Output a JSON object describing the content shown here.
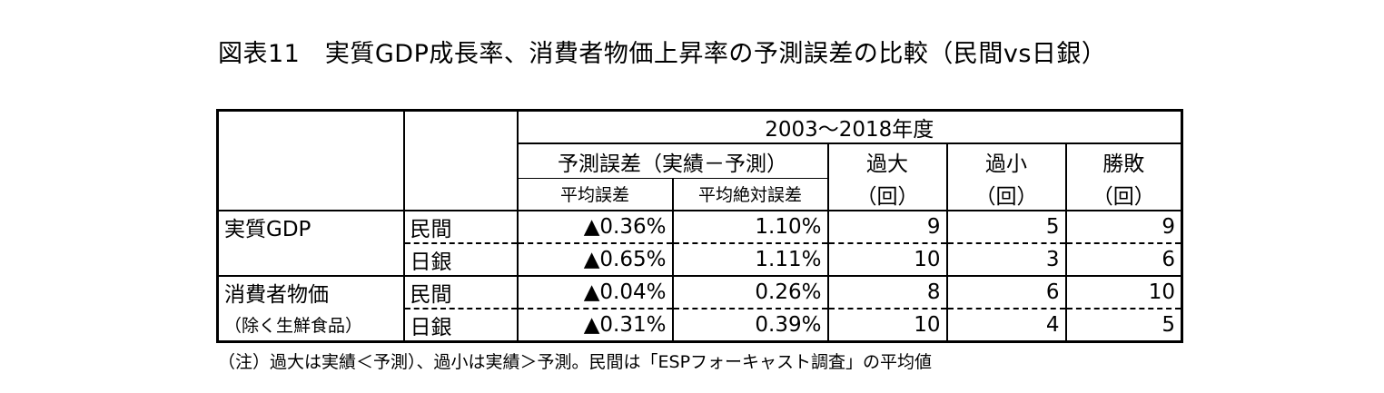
{
  "title": "図表11　実質GDP成長率、消費者物価上昇率の予測誤差の比較（民間vs日銀）",
  "header": {
    "period": "2003～2018年度",
    "forecast_error": "予測誤差（実績－予測）",
    "mean_error": "平均誤差",
    "mean_abs_error": "平均絶対誤差",
    "over": "過大",
    "under": "過小",
    "wins": "勝敗",
    "unit": "（回）"
  },
  "rows": [
    {
      "category": "実質GDP",
      "sub": "",
      "source": "民間",
      "mean_error": "▲0.36%",
      "mean_abs_error": "1.10%",
      "over": "9",
      "under": "5",
      "wins": "9"
    },
    {
      "category": "",
      "sub": "",
      "source": "日銀",
      "mean_error": "▲0.65%",
      "mean_abs_error": "1.11%",
      "over": "10",
      "under": "3",
      "wins": "6"
    },
    {
      "category": "消費者物価",
      "sub": "",
      "source": "民間",
      "mean_error": "▲0.04%",
      "mean_abs_error": "0.26%",
      "over": "8",
      "under": "6",
      "wins": "10"
    },
    {
      "category": "",
      "sub": "（除く生鮮食品）",
      "source": "日銀",
      "mean_error": "▲0.31%",
      "mean_abs_error": "0.39%",
      "over": "10",
      "under": "4",
      "wins": "5"
    }
  ],
  "note": "（注）過大は実績＜予測）、過小は実績＞予測。民間は「ESPフォーキャスト調査」の平均値"
}
